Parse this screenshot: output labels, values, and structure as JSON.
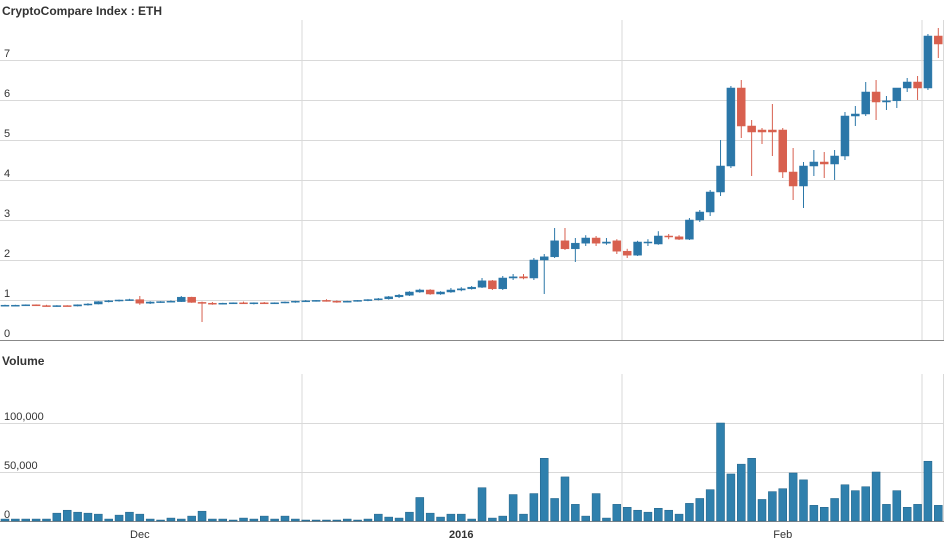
{
  "chart_data": [
    {
      "type": "candlestick",
      "title": "CryptoCompare Index : ETH",
      "open": [
        0.86,
        0.87,
        0.87,
        0.88,
        0.86,
        0.85,
        0.86,
        0.85,
        0.88,
        0.9,
        0.96,
        0.98,
        1.0,
        1.01,
        0.92,
        0.95,
        0.96,
        0.96,
        1.07,
        0.94,
        0.92,
        0.9,
        0.92,
        0.93,
        0.91,
        0.93,
        0.91,
        0.93,
        0.95,
        0.97,
        0.98,
        0.99,
        0.97,
        0.95,
        0.97,
        0.99,
        1.01,
        1.03,
        1.08,
        1.12,
        1.2,
        1.25,
        1.15,
        1.2,
        1.25,
        1.28,
        1.32,
        1.48,
        1.28,
        1.55,
        1.58,
        1.55,
        2.0,
        2.08,
        2.48,
        2.28,
        2.42,
        2.55,
        2.42,
        2.48,
        2.22,
        2.12,
        2.45,
        2.4,
        2.6,
        2.58,
        2.52,
        3.0,
        3.2,
        3.7,
        4.35,
        6.3,
        5.35,
        5.25,
        5.25,
        5.25,
        4.2,
        3.85,
        4.35,
        4.45,
        4.4,
        4.6,
        5.6,
        5.65,
        6.2,
        5.95,
        5.98,
        6.3,
        6.45,
        6.3,
        7.6
      ],
      "high": [
        0.88,
        0.88,
        0.89,
        0.89,
        0.88,
        0.87,
        0.87,
        0.89,
        0.92,
        0.97,
        1.0,
        1.01,
        1.03,
        1.1,
        0.97,
        0.97,
        0.99,
        1.1,
        1.08,
        0.96,
        0.95,
        0.93,
        0.94,
        0.96,
        0.94,
        0.95,
        0.94,
        0.96,
        0.98,
        1.0,
        1.0,
        1.02,
        0.99,
        0.98,
        1.0,
        1.02,
        1.05,
        1.1,
        1.15,
        1.22,
        1.28,
        1.27,
        1.22,
        1.3,
        1.32,
        1.35,
        1.55,
        1.5,
        1.6,
        1.65,
        1.65,
        2.05,
        2.15,
        2.8,
        2.8,
        2.55,
        2.62,
        2.6,
        2.55,
        2.52,
        2.28,
        2.48,
        2.52,
        2.72,
        2.65,
        2.62,
        3.05,
        3.25,
        3.75,
        5.0,
        6.35,
        6.5,
        5.5,
        5.3,
        5.9,
        5.3,
        4.8,
        4.45,
        4.75,
        4.7,
        4.75,
        5.7,
        5.85,
        6.45,
        6.5,
        6.1,
        6.3,
        6.55,
        6.6,
        7.65,
        7.8
      ],
      "low": [
        0.85,
        0.86,
        0.86,
        0.85,
        0.84,
        0.83,
        0.84,
        0.84,
        0.86,
        0.89,
        0.94,
        0.96,
        0.98,
        0.88,
        0.9,
        0.93,
        0.94,
        0.95,
        0.93,
        0.45,
        0.88,
        0.89,
        0.9,
        0.9,
        0.89,
        0.9,
        0.9,
        0.92,
        0.93,
        0.95,
        0.96,
        0.96,
        0.93,
        0.94,
        0.96,
        0.97,
        0.99,
        1.01,
        1.05,
        1.1,
        1.18,
        1.13,
        1.13,
        1.18,
        1.22,
        1.26,
        1.3,
        1.25,
        1.25,
        1.5,
        1.52,
        1.5,
        1.15,
        2.05,
        2.25,
        1.95,
        2.35,
        2.35,
        2.38,
        2.15,
        2.05,
        2.1,
        2.35,
        2.38,
        2.52,
        2.5,
        2.5,
        2.95,
        3.1,
        3.6,
        4.3,
        5.05,
        4.1,
        4.9,
        4.6,
        4.05,
        3.5,
        3.3,
        4.1,
        4.05,
        4.0,
        4.5,
        5.35,
        5.6,
        5.5,
        5.75,
        5.8,
        6.2,
        6.0,
        6.25,
        7.05
      ],
      "close": [
        0.87,
        0.87,
        0.88,
        0.86,
        0.85,
        0.86,
        0.85,
        0.88,
        0.9,
        0.96,
        0.98,
        1.0,
        1.01,
        0.92,
        0.95,
        0.96,
        0.97,
        1.07,
        0.94,
        0.92,
        0.9,
        0.92,
        0.93,
        0.91,
        0.93,
        0.91,
        0.93,
        0.95,
        0.97,
        0.98,
        0.99,
        0.97,
        0.95,
        0.97,
        0.99,
        1.01,
        1.03,
        1.08,
        1.12,
        1.2,
        1.25,
        1.15,
        1.2,
        1.25,
        1.28,
        1.32,
        1.48,
        1.28,
        1.55,
        1.58,
        1.55,
        2.0,
        2.08,
        2.48,
        2.28,
        2.42,
        2.55,
        2.42,
        2.45,
        2.22,
        2.12,
        2.45,
        2.45,
        2.6,
        2.58,
        2.52,
        3.0,
        3.2,
        3.7,
        4.35,
        6.3,
        5.35,
        5.2,
        5.2,
        5.2,
        4.2,
        3.85,
        4.35,
        4.45,
        4.4,
        4.6,
        5.6,
        5.65,
        6.2,
        5.95,
        5.98,
        6.3,
        6.45,
        6.3,
        7.6,
        7.4
      ],
      "up_color": "#2b77a8",
      "down_color": "#d8604f",
      "ylim": [
        0,
        8
      ],
      "yticks": [
        0,
        1,
        2,
        3,
        4,
        5,
        6,
        7
      ],
      "grid": true
    },
    {
      "type": "bar",
      "title": "Volume",
      "categories": [
        null,
        null,
        null,
        null,
        null,
        null,
        null,
        null,
        null,
        null,
        null,
        null,
        null,
        "Dec",
        null,
        null,
        null,
        null,
        null,
        null,
        null,
        null,
        null,
        null,
        null,
        null,
        null,
        null,
        null,
        null,
        null,
        null,
        null,
        null,
        null,
        null,
        null,
        null,
        null,
        null,
        null,
        null,
        null,
        null,
        "2016",
        null,
        null,
        null,
        null,
        null,
        null,
        null,
        null,
        null,
        null,
        null,
        null,
        null,
        null,
        null,
        null,
        null,
        null,
        null,
        null,
        null,
        null,
        null,
        null,
        null,
        null,
        null,
        null,
        null,
        null,
        "Feb",
        null,
        null,
        null,
        null,
        null,
        null,
        null,
        null,
        null,
        null,
        null,
        null,
        null,
        null,
        null
      ],
      "values": [
        2000,
        2000,
        2000,
        2000,
        2000,
        8000,
        11000,
        9000,
        8000,
        7000,
        2000,
        6000,
        9000,
        7000,
        2000,
        1000,
        3000,
        2000,
        5000,
        10000,
        2000,
        2000,
        1000,
        3000,
        2000,
        5000,
        2000,
        5000,
        2000,
        1000,
        1000,
        1000,
        1000,
        2000,
        1000,
        2000,
        7000,
        4000,
        3000,
        9000,
        24000,
        8000,
        4000,
        7000,
        7000,
        2000,
        34000,
        3000,
        5000,
        27000,
        7000,
        28000,
        64000,
        23000,
        45000,
        17000,
        5000,
        28000,
        3000,
        17000,
        14000,
        11000,
        9000,
        13000,
        11000,
        7000,
        18000,
        23000,
        32000,
        100000,
        48000,
        58000,
        64000,
        22000,
        30000,
        33000,
        49000,
        42000,
        16000,
        14000,
        23000,
        37000,
        31000,
        35000,
        50000,
        17000,
        31000,
        14000,
        17000,
        61000,
        16000
      ],
      "color": "#2f80ad",
      "ylim": [
        0,
        150000
      ],
      "yticks": [
        0,
        {
          "value": 50000,
          "label": "50,000"
        },
        {
          "value": 100000,
          "label": "100,000"
        }
      ],
      "grid": true
    }
  ]
}
